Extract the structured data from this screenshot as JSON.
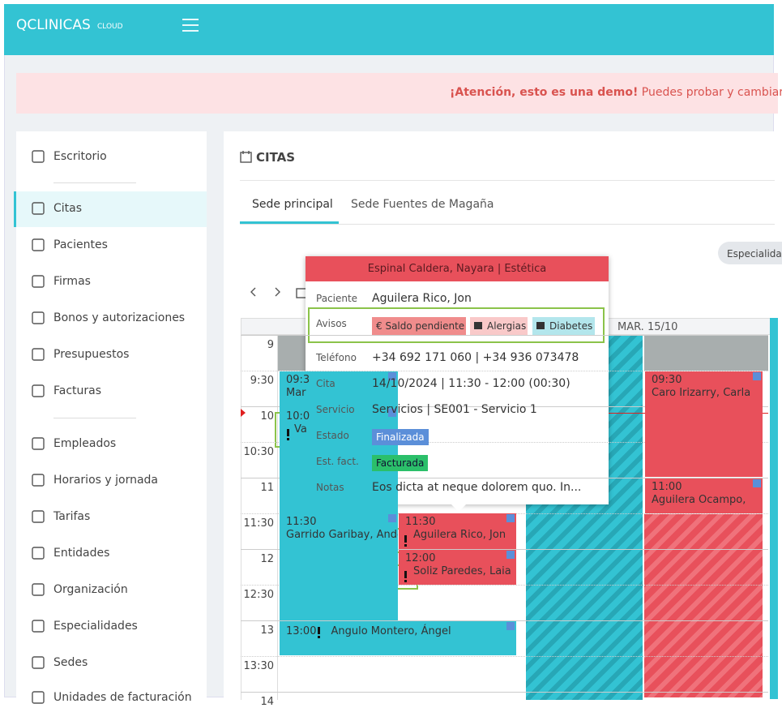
{
  "header": {
    "brand": "QCLINICAS",
    "brand_suffix": "CLOUD"
  },
  "banner": {
    "strong": "¡Atención, esto es una demo!",
    "text": "Puedes probar y cambiar todo"
  },
  "sidebar": {
    "items": [
      "Escritorio",
      "Citas",
      "Pacientes",
      "Firmas",
      "Bonos y autorizaciones",
      "Presupuestos",
      "Facturas",
      "Empleados",
      "Horarios y jornada",
      "Tarifas",
      "Entidades",
      "Organización",
      "Especialidades",
      "Sedes",
      "Unidades de facturación"
    ]
  },
  "main": {
    "title": "CITAS",
    "tabs": [
      "Sede principal",
      "Sede Fuentes de Magaña"
    ],
    "filter_button": "Especialidades"
  },
  "calendar": {
    "day_header": "MAR. 15/10",
    "times": [
      "9",
      "9:30",
      "10",
      "10:30",
      "11",
      "11:30",
      "12",
      "12:30",
      "13",
      "13:30",
      "14"
    ],
    "appointments": [
      {
        "time": "09:3",
        "name": "Mar"
      },
      {
        "time": "10:0",
        "name": "Va"
      },
      {
        "time": "11:30",
        "name": "Garrido Garibay, Ander"
      },
      {
        "time": "11:30",
        "name": "Aguilera Rico, Jon"
      },
      {
        "time": "12:00",
        "name": "Soliz Paredes, Laia"
      },
      {
        "time": "13:00",
        "name": "Angulo Montero, Ángel"
      },
      {
        "time": "09:30",
        "name": "Caro Irizarry, Carla"
      },
      {
        "time": "11:00",
        "name": "Aguilera Ocampo,"
      }
    ]
  },
  "popup": {
    "title": "Espinal Caldera, Nayara | Estética",
    "rows": [
      {
        "label": "Paciente",
        "value": "Aguilera Rico, Jon"
      },
      {
        "label": "Avisos",
        "badges": [
          "€ Saldo pendiente",
          "Alergias",
          "Diabetes"
        ]
      },
      {
        "label": "Teléfono",
        "value": "+34 692 171 060 | +34 936 073478"
      },
      {
        "label": "Cita",
        "value": "14/10/2024 | 11:30 - 12:00 (00:30)"
      },
      {
        "label": "Servicio",
        "value": "Servicios | SE001 - Servicio 1"
      },
      {
        "label": "Estado",
        "badge": "Finalizada"
      },
      {
        "label": "Est. fact.",
        "badge": "Facturada"
      },
      {
        "label": "Notas",
        "value": "Eos dicta at neque dolorem quo. In..."
      }
    ]
  }
}
